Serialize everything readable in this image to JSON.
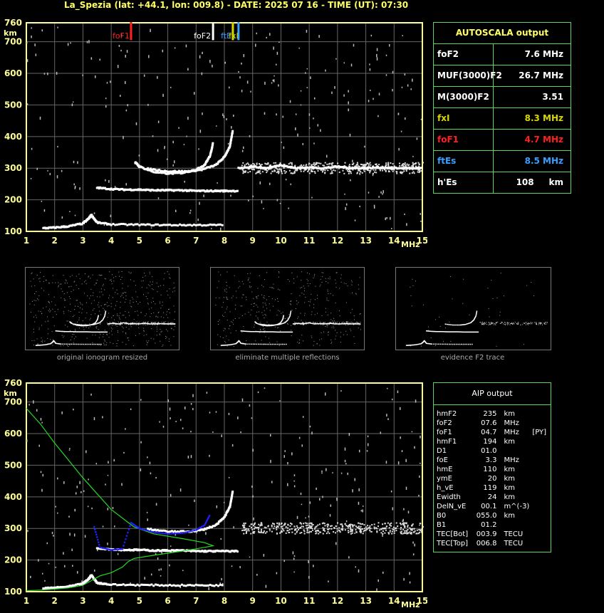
{
  "header": {
    "title": "La_Spezia (lat: +44.1, lon: 009.8) - DATE: 2025 07 16 - TIME (UT): 07:30"
  },
  "autoscala": {
    "title": "AUTOSCALA output",
    "rows": [
      {
        "name": "foF2",
        "value": "7.6 MHz",
        "color": "#ffffff"
      },
      {
        "name": "MUF(3000)F2",
        "value": "26.7 MHz",
        "color": "#ffffff"
      },
      {
        "name": "M(3000)F2",
        "value": "3.51",
        "color": "#ffffff"
      },
      {
        "name": "fxI",
        "value": "8.3 MHz",
        "color": "#d8d800"
      },
      {
        "name": "foF1",
        "value": "4.7 MHz",
        "color": "#ff2020"
      },
      {
        "name": "ftEs",
        "value": "8.5 MHz",
        "color": "#3aa0ff"
      },
      {
        "name": "h'Es",
        "value": "108     km",
        "color": "#ffffff"
      }
    ]
  },
  "aip": {
    "title": "AIP output",
    "rows": [
      {
        "name": "hmF2",
        "value": "235",
        "unit": "km",
        "extra": ""
      },
      {
        "name": "foF2",
        "value": "07.6",
        "unit": "MHz",
        "extra": ""
      },
      {
        "name": "foF1",
        "value": "04.7",
        "unit": "MHz",
        "extra": "[PY]"
      },
      {
        "name": "hmF1",
        "value": "194",
        "unit": "km",
        "extra": ""
      },
      {
        "name": "D1",
        "value": "01.0",
        "unit": "",
        "extra": ""
      },
      {
        "name": "foE",
        "value": "3.3",
        "unit": "MHz",
        "extra": ""
      },
      {
        "name": "hmE",
        "value": "110",
        "unit": "km",
        "extra": ""
      },
      {
        "name": "ymE",
        "value": "20",
        "unit": "km",
        "extra": ""
      },
      {
        "name": "h_vE",
        "value": "119",
        "unit": "km",
        "extra": ""
      },
      {
        "name": "Ewidth",
        "value": "24",
        "unit": "km",
        "extra": ""
      },
      {
        "name": "DelN_vE",
        "value": "00.1",
        "unit": "m^(-3)",
        "extra": ""
      },
      {
        "name": "B0",
        "value": "055.0",
        "unit": "km",
        "extra": ""
      },
      {
        "name": "B1",
        "value": "01.2",
        "unit": "",
        "extra": ""
      },
      {
        "name": "TEC[Bot]",
        "value": "003.9",
        "unit": "TECU",
        "extra": ""
      },
      {
        "name": "TEC[Top]",
        "value": "006.8",
        "unit": "TECU",
        "extra": ""
      }
    ]
  },
  "thumbnails": [
    {
      "caption": "original ionogram resized"
    },
    {
      "caption": "eliminate multiple reflections"
    },
    {
      "caption": "evidence F2 trace"
    }
  ],
  "chart_data": [
    {
      "type": "scatter",
      "xlabel": "MHz",
      "ylabel": "km",
      "xlim": [
        1,
        15
      ],
      "ylim": [
        100,
        760
      ],
      "xticks": [
        1,
        2,
        3,
        4,
        5,
        6,
        7,
        8,
        9,
        10,
        11,
        12,
        13,
        14,
        15
      ],
      "yticks": [
        100,
        200,
        300,
        400,
        500,
        600,
        700,
        760
      ],
      "grid": true,
      "markers": [
        {
          "label": "foF1",
          "x": 4.7,
          "color": "#ff2020"
        },
        {
          "label": "foF2",
          "x": 7.6,
          "color": "#ffffff"
        },
        {
          "label": "ftEs",
          "x": 8.5,
          "color": "#3aa0ff"
        },
        {
          "label": "fxI",
          "x": 8.3,
          "color": "#d8d800"
        }
      ],
      "traces": [
        {
          "name": "E layer",
          "x": [
            1.6,
            2.0,
            2.5,
            3.0,
            3.2,
            3.3,
            3.5,
            4.0,
            5.0,
            6.0,
            7.0,
            8.0
          ],
          "y": [
            110,
            112,
            116,
            125,
            140,
            152,
            128,
            122,
            121,
            120,
            120,
            120
          ]
        },
        {
          "name": "Es",
          "x": [
            3.5,
            4.0,
            4.5,
            5.0,
            5.5,
            6.0,
            6.5,
            7.0,
            7.5,
            8.0,
            8.5
          ],
          "y": [
            238,
            234,
            232,
            232,
            230,
            230,
            230,
            228,
            228,
            228,
            228
          ]
        },
        {
          "name": "F1/F2 o-trace",
          "x": [
            4.85,
            5.0,
            5.5,
            6.0,
            6.5,
            7.0,
            7.3,
            7.5,
            7.6
          ],
          "y": [
            318,
            305,
            288,
            283,
            285,
            295,
            310,
            340,
            380
          ]
        },
        {
          "name": "F2 x-trace",
          "x": [
            5.3,
            6.0,
            6.7,
            7.2,
            7.7,
            8.0,
            8.2,
            8.3
          ],
          "y": [
            298,
            290,
            290,
            295,
            310,
            335,
            370,
            420
          ]
        },
        {
          "name": "noise band",
          "x": [
            8.5,
            9,
            9.5,
            10,
            10.5,
            11,
            11.5,
            12,
            12.5,
            13,
            13.5,
            14,
            14.5,
            15
          ],
          "y": [
            300,
            305,
            300,
            310,
            300,
            302,
            300,
            305,
            300,
            300,
            302,
            300,
            300,
            300
          ]
        }
      ]
    },
    {
      "type": "line",
      "xlabel": "MHz",
      "ylabel": "km",
      "xlim": [
        1,
        15
      ],
      "ylim": [
        100,
        760
      ],
      "xticks": [
        1,
        2,
        3,
        4,
        5,
        6,
        7,
        8,
        9,
        10,
        11,
        12,
        13,
        14,
        15
      ],
      "yticks": [
        100,
        200,
        300,
        400,
        500,
        600,
        700,
        760
      ],
      "grid": true,
      "series": [
        {
          "name": "profile",
          "color": "#22dd22",
          "x": [
            1.0,
            1.5,
            2.0,
            2.5,
            3.0,
            3.3,
            3.6,
            4.0,
            4.4,
            4.6,
            4.8,
            5.5,
            6.5,
            7.3,
            7.6,
            7.3,
            6.5,
            5.5,
            4.8,
            4.0,
            3.0,
            2.0,
            1.5,
            1.0
          ],
          "y": [
            103,
            105,
            108,
            112,
            120,
            135,
            150,
            160,
            178,
            195,
            205,
            215,
            228,
            240,
            245,
            255,
            268,
            283,
            305,
            360,
            460,
            570,
            630,
            680
          ]
        },
        {
          "name": "fit",
          "color": "#2020ff",
          "x": [
            3.4,
            3.6,
            4.0,
            4.4,
            4.7,
            5.0,
            5.5,
            6.0,
            6.5,
            7.0,
            7.3,
            7.5
          ],
          "y": [
            305,
            240,
            232,
            235,
            318,
            300,
            288,
            283,
            285,
            295,
            310,
            345
          ]
        }
      ],
      "traces": [
        {
          "name": "E layer",
          "x": [
            1.6,
            2.0,
            2.5,
            3.0,
            3.2,
            3.3,
            3.5,
            4.0,
            5.0,
            6.0,
            7.0,
            8.0
          ],
          "y": [
            110,
            112,
            116,
            125,
            140,
            152,
            128,
            122,
            121,
            120,
            120,
            120
          ]
        },
        {
          "name": "Es",
          "x": [
            3.5,
            4.0,
            4.5,
            5.0,
            5.5,
            6.0,
            6.5,
            7.0,
            7.5,
            8.0,
            8.5
          ],
          "y": [
            238,
            234,
            232,
            232,
            230,
            230,
            230,
            228,
            228,
            228,
            228
          ]
        },
        {
          "name": "F2 x-trace",
          "x": [
            5.3,
            6.0,
            6.7,
            7.2,
            7.7,
            8.0,
            8.2,
            8.3
          ],
          "y": [
            298,
            290,
            290,
            295,
            310,
            335,
            370,
            420
          ]
        }
      ]
    }
  ]
}
